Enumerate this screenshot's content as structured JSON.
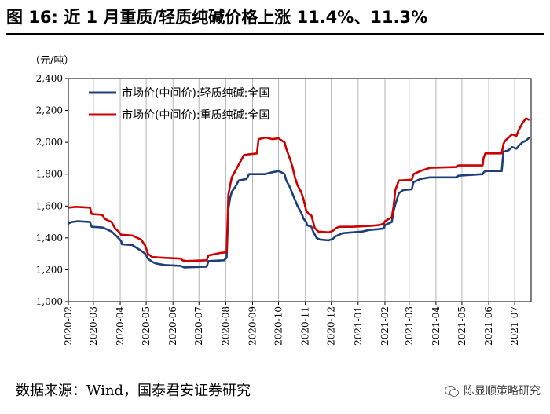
{
  "title": "图 16:  近 1 月重质/轻质纯碱价格上涨 11.4%、11.3%",
  "source": "数据来源：Wind，国泰君安证券研究",
  "brand": "陈显顺策略研究",
  "colors": {
    "light": "#1f3f7a",
    "heavy": "#cc0000"
  },
  "chart_data": {
    "type": "line",
    "unit_label": "（元/吨）",
    "ylim": [
      1000,
      2400
    ],
    "yticks": [
      1000,
      1200,
      1400,
      1600,
      1800,
      2000,
      2200,
      2400
    ],
    "ytick_labels": [
      "1,000",
      "1,200",
      "1,400",
      "1,600",
      "1,800",
      "2,000",
      "2,200",
      "2,400"
    ],
    "xlim": [
      "2020-02-01",
      "2021-07-20"
    ],
    "xticks": [
      "2020-02",
      "2020-03",
      "2020-04",
      "2020-05",
      "2020-06",
      "2020-07",
      "2020-08",
      "2020-09",
      "2020-10",
      "2020-11",
      "2020-12",
      "2021-01",
      "2021-02",
      "2021-03",
      "2021-04",
      "2021-05",
      "2021-06",
      "2021-07"
    ],
    "grid": "vertical",
    "legend_position": "top-left",
    "series": [
      {
        "name": "市场价(中间价):轻质纯碱:全国",
        "color": "#1f3f7a",
        "points": [
          [
            "2020-02-01",
            1490
          ],
          [
            "2020-02-05",
            1500
          ],
          [
            "2020-02-12",
            1505
          ],
          [
            "2020-02-26",
            1500
          ],
          [
            "2020-02-28",
            1470
          ],
          [
            "2020-03-12",
            1465
          ],
          [
            "2020-03-18",
            1450
          ],
          [
            "2020-03-22",
            1440
          ],
          [
            "2020-03-28",
            1410
          ],
          [
            "2020-04-02",
            1380
          ],
          [
            "2020-04-03",
            1360
          ],
          [
            "2020-04-15",
            1355
          ],
          [
            "2020-04-25",
            1320
          ],
          [
            "2020-04-30",
            1300
          ],
          [
            "2020-05-03",
            1270
          ],
          [
            "2020-05-08",
            1250
          ],
          [
            "2020-05-12",
            1240
          ],
          [
            "2020-05-22",
            1230
          ],
          [
            "2020-06-10",
            1225
          ],
          [
            "2020-06-14",
            1215
          ],
          [
            "2020-07-10",
            1220
          ],
          [
            "2020-07-12",
            1255
          ],
          [
            "2020-07-30",
            1260
          ],
          [
            "2020-08-02",
            1275
          ],
          [
            "2020-08-04",
            1580
          ],
          [
            "2020-08-06",
            1650
          ],
          [
            "2020-08-08",
            1690
          ],
          [
            "2020-08-12",
            1720
          ],
          [
            "2020-08-16",
            1760
          ],
          [
            "2020-08-25",
            1770
          ],
          [
            "2020-08-28",
            1800
          ],
          [
            "2020-09-15",
            1800
          ],
          [
            "2020-09-22",
            1810
          ],
          [
            "2020-10-01",
            1820
          ],
          [
            "2020-10-05",
            1810
          ],
          [
            "2020-10-08",
            1800
          ],
          [
            "2020-10-10",
            1760
          ],
          [
            "2020-10-14",
            1720
          ],
          [
            "2020-10-17",
            1680
          ],
          [
            "2020-10-20",
            1640
          ],
          [
            "2020-10-23",
            1600
          ],
          [
            "2020-10-27",
            1560
          ],
          [
            "2020-10-30",
            1520
          ],
          [
            "2020-11-02",
            1500
          ],
          [
            "2020-11-03",
            1480
          ],
          [
            "2020-11-08",
            1470
          ],
          [
            "2020-11-10",
            1440
          ],
          [
            "2020-11-12",
            1420
          ],
          [
            "2020-11-14",
            1400
          ],
          [
            "2020-11-18",
            1390
          ],
          [
            "2020-11-28",
            1385
          ],
          [
            "2020-12-03",
            1395
          ],
          [
            "2020-12-06",
            1410
          ],
          [
            "2020-12-10",
            1420
          ],
          [
            "2020-12-14",
            1430
          ],
          [
            "2020-12-25",
            1435
          ],
          [
            "2021-01-06",
            1440
          ],
          [
            "2021-01-14",
            1450
          ],
          [
            "2021-01-25",
            1455
          ],
          [
            "2021-01-31",
            1460
          ],
          [
            "2021-02-01",
            1480
          ],
          [
            "2021-02-09",
            1500
          ],
          [
            "2021-02-11",
            1570
          ],
          [
            "2021-02-13",
            1610
          ],
          [
            "2021-02-17",
            1680
          ],
          [
            "2021-02-22",
            1700
          ],
          [
            "2021-03-04",
            1705
          ],
          [
            "2021-03-06",
            1750
          ],
          [
            "2021-03-14",
            1770
          ],
          [
            "2021-03-25",
            1780
          ],
          [
            "2021-04-25",
            1780
          ],
          [
            "2021-04-27",
            1790
          ],
          [
            "2021-05-25",
            1800
          ],
          [
            "2021-05-26",
            1810
          ],
          [
            "2021-05-28",
            1820
          ],
          [
            "2021-06-16",
            1820
          ],
          [
            "2021-06-18",
            1940
          ],
          [
            "2021-06-24",
            1950
          ],
          [
            "2021-06-28",
            1970
          ],
          [
            "2021-07-03",
            1960
          ],
          [
            "2021-07-06",
            1980
          ],
          [
            "2021-07-10",
            2000
          ],
          [
            "2021-07-14",
            2010
          ],
          [
            "2021-07-18",
            2030
          ]
        ]
      },
      {
        "name": "市场价(中间价):重质纯碱:全国",
        "color": "#cc0000",
        "points": [
          [
            "2020-02-01",
            1590
          ],
          [
            "2020-02-10",
            1595
          ],
          [
            "2020-02-26",
            1590
          ],
          [
            "2020-02-28",
            1550
          ],
          [
            "2020-03-10",
            1545
          ],
          [
            "2020-03-12",
            1540
          ],
          [
            "2020-03-14",
            1520
          ],
          [
            "2020-03-22",
            1500
          ],
          [
            "2020-03-26",
            1460
          ],
          [
            "2020-03-30",
            1440
          ],
          [
            "2020-04-02",
            1420
          ],
          [
            "2020-04-15",
            1415
          ],
          [
            "2020-04-25",
            1390
          ],
          [
            "2020-04-30",
            1350
          ],
          [
            "2020-05-03",
            1300
          ],
          [
            "2020-05-08",
            1280
          ],
          [
            "2020-05-22",
            1275
          ],
          [
            "2020-06-10",
            1270
          ],
          [
            "2020-06-12",
            1260
          ],
          [
            "2020-06-16",
            1255
          ],
          [
            "2020-07-10",
            1260
          ],
          [
            "2020-07-12",
            1290
          ],
          [
            "2020-07-25",
            1305
          ],
          [
            "2020-08-02",
            1310
          ],
          [
            "2020-08-04",
            1670
          ],
          [
            "2020-08-06",
            1730
          ],
          [
            "2020-08-08",
            1780
          ],
          [
            "2020-08-12",
            1820
          ],
          [
            "2020-08-16",
            1860
          ],
          [
            "2020-08-22",
            1920
          ],
          [
            "2020-08-28",
            1925
          ],
          [
            "2020-09-06",
            1930
          ],
          [
            "2020-09-08",
            2020
          ],
          [
            "2020-09-16",
            2030
          ],
          [
            "2020-09-24",
            2020
          ],
          [
            "2020-10-01",
            2025
          ],
          [
            "2020-10-05",
            2010
          ],
          [
            "2020-10-08",
            2000
          ],
          [
            "2020-10-10",
            1960
          ],
          [
            "2020-10-14",
            1900
          ],
          [
            "2020-10-17",
            1850
          ],
          [
            "2020-10-20",
            1780
          ],
          [
            "2020-10-23",
            1730
          ],
          [
            "2020-10-27",
            1690
          ],
          [
            "2020-10-30",
            1640
          ],
          [
            "2020-11-02",
            1570
          ],
          [
            "2020-11-05",
            1550
          ],
          [
            "2020-11-08",
            1540
          ],
          [
            "2020-11-10",
            1500
          ],
          [
            "2020-11-12",
            1460
          ],
          [
            "2020-11-16",
            1440
          ],
          [
            "2020-11-28",
            1435
          ],
          [
            "2020-12-03",
            1445
          ],
          [
            "2020-12-06",
            1460
          ],
          [
            "2020-12-10",
            1470
          ],
          [
            "2020-12-25",
            1470
          ],
          [
            "2021-01-14",
            1475
          ],
          [
            "2021-01-25",
            1480
          ],
          [
            "2021-01-31",
            1490
          ],
          [
            "2021-02-01",
            1505
          ],
          [
            "2021-02-09",
            1530
          ],
          [
            "2021-02-11",
            1600
          ],
          [
            "2021-02-13",
            1700
          ],
          [
            "2021-02-17",
            1760
          ],
          [
            "2021-03-04",
            1765
          ],
          [
            "2021-03-06",
            1800
          ],
          [
            "2021-03-14",
            1820
          ],
          [
            "2021-03-25",
            1840
          ],
          [
            "2021-04-25",
            1845
          ],
          [
            "2021-04-27",
            1855
          ],
          [
            "2021-05-25",
            1855
          ],
          [
            "2021-05-26",
            1900
          ],
          [
            "2021-05-28",
            1930
          ],
          [
            "2021-06-16",
            1930
          ],
          [
            "2021-06-18",
            1990
          ],
          [
            "2021-06-20",
            2010
          ],
          [
            "2021-06-24",
            2030
          ],
          [
            "2021-06-28",
            2050
          ],
          [
            "2021-07-03",
            2040
          ],
          [
            "2021-07-06",
            2080
          ],
          [
            "2021-07-10",
            2120
          ],
          [
            "2021-07-14",
            2150
          ],
          [
            "2021-07-18",
            2140
          ]
        ]
      }
    ]
  }
}
